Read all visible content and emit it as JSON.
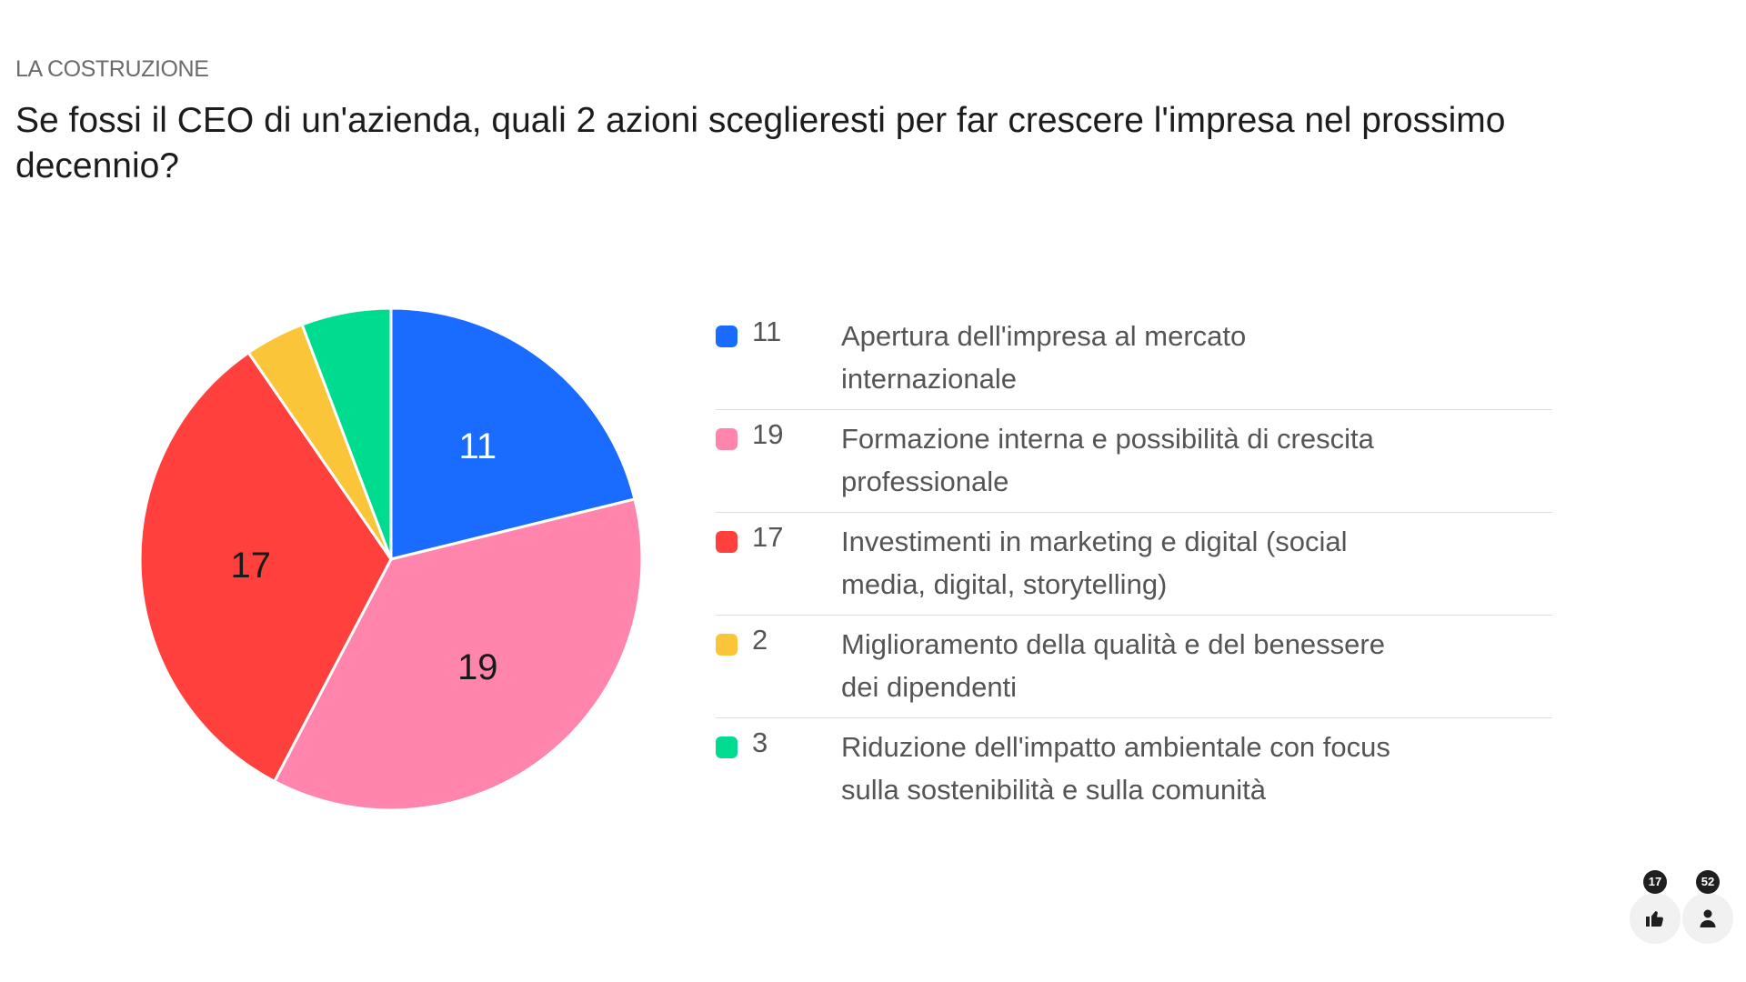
{
  "header": {
    "kicker": "LA COSTRUZIONE",
    "question": "Se fossi il CEO di un'azienda, quali 2 azioni sceglieresti per far crescere l'impresa nel prossimo decennio?"
  },
  "chart_data": {
    "type": "pie",
    "title": "",
    "legend_position": "right",
    "slices": [
      {
        "label": "Apertura dell'impresa al mercato internazionale",
        "value": 11,
        "color": "#196cff",
        "show_label": true,
        "label_color": "#ffffff"
      },
      {
        "label": "Formazione interna e possibilità di crescita professionale",
        "value": 19,
        "color": "#ff85ad",
        "show_label": true,
        "label_color": "#1a1a1a"
      },
      {
        "label": "Investimenti in marketing e digital (social media, digital, storytelling)",
        "value": 17,
        "color": "#ff403d",
        "show_label": true,
        "label_color": "#1a1a1a"
      },
      {
        "label": "Miglioramento della qualità e del benessere dei dipendenti",
        "value": 2,
        "color": "#fbc539",
        "show_label": false,
        "label_color": "#1a1a1a"
      },
      {
        "label": "Riduzione dell'impatto ambientale con focus sulla sostenibilità e sulla comunità",
        "value": 3,
        "color": "#00dc8f",
        "show_label": false,
        "label_color": "#1a1a1a"
      }
    ]
  },
  "legend": {
    "items": [
      {
        "count": "11",
        "text": "Apertura dell'impresa al mercato internazionale",
        "color": "#196cff"
      },
      {
        "count": "19",
        "text": "Formazione interna e possibilità di crescita professionale",
        "color": "#ff85ad"
      },
      {
        "count": "17",
        "text": "Investimenti in marketing e digital (social media, digital, storytelling)",
        "color": "#ff403d"
      },
      {
        "count": "2",
        "text": "Miglioramento della qualità e del benessere dei dipendenti",
        "color": "#fbc539"
      },
      {
        "count": "3",
        "text": "Riduzione dell'impatto ambientale con focus sulla sostenibilità e sulla comunità",
        "color": "#00dc8f"
      }
    ]
  },
  "footer": {
    "likes_count": "17",
    "likes_icon": "thumbs-up-icon",
    "participants_count": "52",
    "participants_icon": "person-icon"
  }
}
